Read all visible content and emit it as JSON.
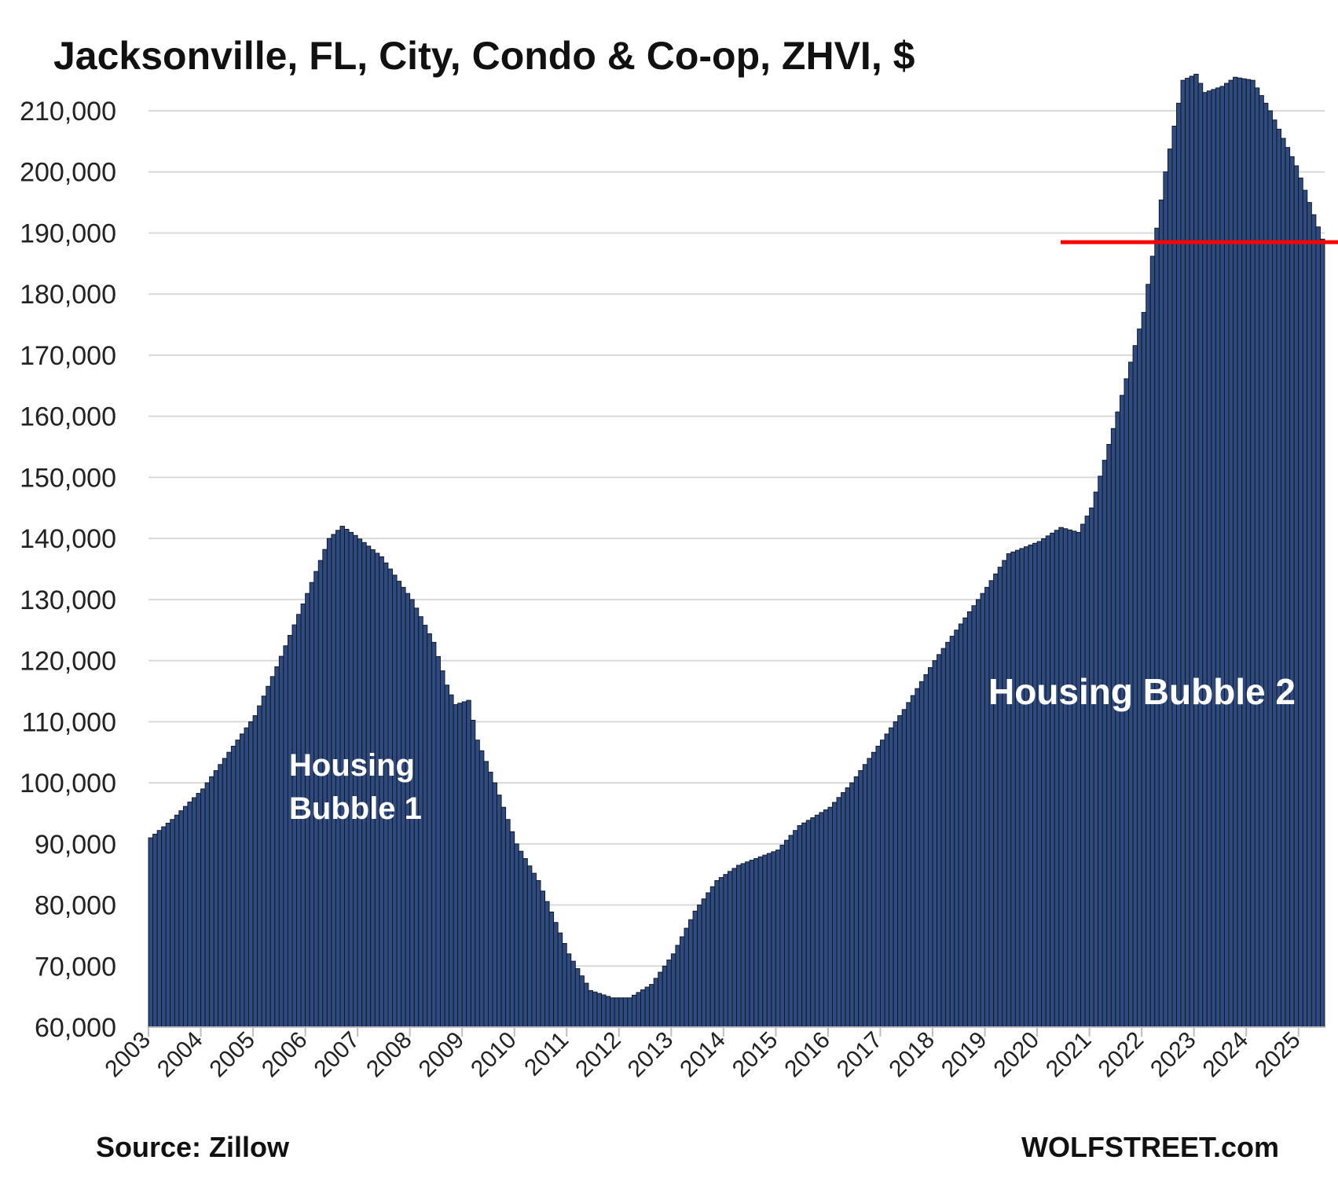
{
  "chart_data": {
    "type": "bar",
    "title": "Jacksonville, FL, City, Condo & Co-op, ZHVI, $",
    "source": "Source: Zillow",
    "brand": "WOLFSTREET.com",
    "annotations": [
      "Housing",
      "Bubble 1",
      "Housing Bubble 2"
    ],
    "ylim": [
      60000,
      215000
    ],
    "yticks": [
      60000,
      70000,
      80000,
      90000,
      100000,
      110000,
      120000,
      130000,
      140000,
      150000,
      160000,
      170000,
      180000,
      190000,
      200000,
      210000
    ],
    "ytick_labels": [
      "60,000",
      "70,000",
      "80,000",
      "90,000",
      "100,000",
      "110,000",
      "120,000",
      "130,000",
      "140,000",
      "150,000",
      "160,000",
      "170,000",
      "180,000",
      "190,000",
      "200,000",
      "210,000"
    ],
    "xtick_labels": [
      "2003",
      "2004",
      "2005",
      "2006",
      "2007",
      "2008",
      "2009",
      "2010",
      "2011",
      "2012",
      "2013",
      "2014",
      "2015",
      "2016",
      "2017",
      "2018",
      "2019",
      "2020",
      "2021",
      "2022",
      "2023",
      "2024",
      "2025"
    ],
    "x_start": "2003-01",
    "frequency": "monthly",
    "reference_line_value": 188500,
    "colors": {
      "bar": "#2f4a7e",
      "bar_edge": "#0e1420",
      "reference_line": "#ff0000",
      "grid": "#d9d9d9"
    },
    "anchors": [
      [
        "2003-01",
        91000
      ],
      [
        "2003-06",
        94000
      ],
      [
        "2004-01",
        99000
      ],
      [
        "2004-06",
        104000
      ],
      [
        "2005-01",
        111000
      ],
      [
        "2005-06",
        119000
      ],
      [
        "2006-01",
        131000
      ],
      [
        "2006-06",
        140000
      ],
      [
        "2006-09",
        142000
      ],
      [
        "2006-12",
        140500
      ],
      [
        "2007-06",
        137000
      ],
      [
        "2008-01",
        130000
      ],
      [
        "2008-06",
        123000
      ],
      [
        "2008-09",
        116000
      ],
      [
        "2008-11",
        112800
      ],
      [
        "2009-02",
        113500
      ],
      [
        "2009-04",
        107000
      ],
      [
        "2009-08",
        100000
      ],
      [
        "2010-01",
        90000
      ],
      [
        "2010-06",
        84000
      ],
      [
        "2011-01",
        72000
      ],
      [
        "2011-06",
        66000
      ],
      [
        "2011-11",
        64800
      ],
      [
        "2012-03",
        64800
      ],
      [
        "2012-08",
        67000
      ],
      [
        "2013-01",
        72000
      ],
      [
        "2013-06",
        79000
      ],
      [
        "2013-11",
        84000
      ],
      [
        "2014-04",
        86500
      ],
      [
        "2015-01",
        89000
      ],
      [
        "2015-06",
        93000
      ],
      [
        "2016-01",
        96000
      ],
      [
        "2016-06",
        100000
      ],
      [
        "2017-01",
        107000
      ],
      [
        "2017-06",
        112000
      ],
      [
        "2018-01",
        120000
      ],
      [
        "2018-06",
        125000
      ],
      [
        "2019-01",
        132000
      ],
      [
        "2019-06",
        137500
      ],
      [
        "2020-01",
        139500
      ],
      [
        "2020-06",
        141800
      ],
      [
        "2020-10",
        141000
      ],
      [
        "2021-01",
        145000
      ],
      [
        "2021-06",
        158000
      ],
      [
        "2022-01",
        177000
      ],
      [
        "2022-06",
        200000
      ],
      [
        "2022-10",
        215000
      ],
      [
        "2023-01",
        216000
      ],
      [
        "2023-03",
        213000
      ],
      [
        "2023-07",
        214000
      ],
      [
        "2023-10",
        215500
      ],
      [
        "2024-02",
        215000
      ],
      [
        "2024-06",
        210000
      ],
      [
        "2024-12",
        201000
      ],
      [
        "2025-03",
        195000
      ],
      [
        "2025-06",
        189000
      ]
    ]
  }
}
